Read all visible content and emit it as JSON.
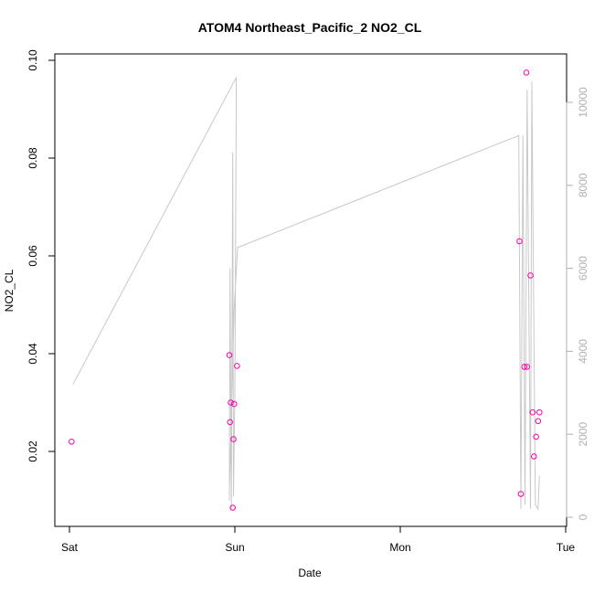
{
  "chart_data": {
    "type": "scatter",
    "title": "ATOM4 Northeast_Pacific_2 NO2_CL",
    "xlabel": "Date",
    "ylabel": "NO2_CL",
    "x_ticks": [
      "Sat",
      "Sun",
      "Mon",
      "Tue"
    ],
    "xlim_hours": [
      -0.3,
      72.8
    ],
    "ylim": [
      0.0,
      0.1
    ],
    "y_ticks": [
      0.02,
      0.04,
      0.06,
      0.08,
      0.1
    ],
    "y_tick_labels": [
      "0.02",
      "0.04",
      "0.06",
      "0.08",
      "0.10"
    ],
    "y2lim": [
      -300,
      10800
    ],
    "y2_ticks": [
      0,
      2000,
      4000,
      6000,
      8000,
      10000
    ],
    "y2_tick_labels": [
      "0",
      "2000",
      "4000",
      "6000",
      "8000",
      "10000"
    ],
    "point_color": "#ff00aa",
    "line_color": "#c8c8c8",
    "series": [
      {
        "kind": "points",
        "axis": "left",
        "x_hours": [
          0.3,
          23.2,
          23.3,
          23.4,
          23.7,
          23.8,
          23.9,
          24.3,
          65.3,
          65.5,
          66.0,
          66.3,
          66.4,
          66.9,
          67.2,
          67.4,
          67.7,
          68.0,
          68.2
        ],
        "y": [
          0.022,
          0.0397,
          0.026,
          0.03,
          0.0085,
          0.0225,
          0.0297,
          0.0375,
          0.063,
          0.0113,
          0.0373,
          0.0975,
          0.0373,
          0.056,
          0.028,
          0.019,
          0.023,
          0.0262,
          0.028
        ]
      },
      {
        "kind": "line",
        "axis": "right",
        "x_hours": [
          0.5,
          24.2,
          24.2,
          24.0,
          23.8,
          23.7,
          23.5,
          23.3,
          23.2,
          23.2,
          23.9,
          24.4,
          65.2,
          65.5,
          65.8,
          66.1,
          66.4,
          66.9,
          67.1,
          67.6,
          68.0,
          68.2
        ],
        "y": [
          3200,
          10600,
          9800,
          3000,
          500,
          8800,
          200,
          6000,
          400,
          600,
          5000,
          6500,
          9200,
          200,
          9200,
          300,
          10300,
          200,
          10500,
          300,
          200,
          1000
        ]
      }
    ]
  }
}
